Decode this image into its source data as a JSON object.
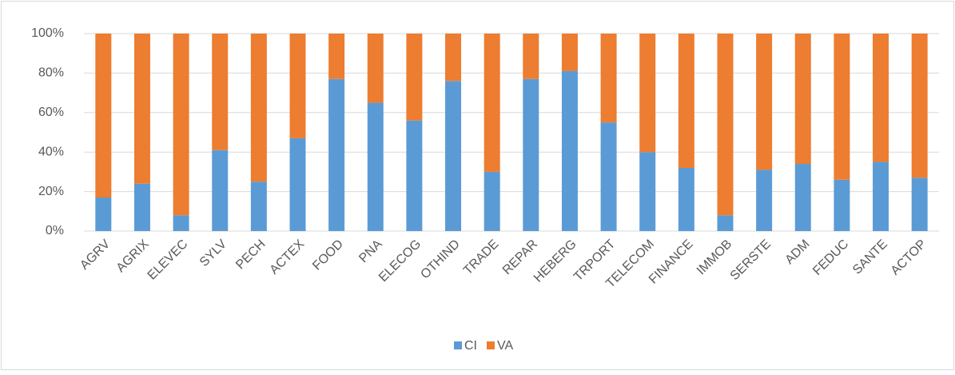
{
  "chart_data": {
    "type": "stacked_bar",
    "categories": [
      "AGRV",
      "AGRIX",
      "ELEVEC",
      "SYLV",
      "PECH",
      "ACTEX",
      "FOOD",
      "PNA",
      "ELECOG",
      "OTHIND",
      "TRADE",
      "REPAR",
      "HEBERG",
      "TRPORT",
      "TELECOM",
      "FINANCE",
      "IMMOB",
      "SERSTE",
      "ADM",
      "FEDUC",
      "SANTE",
      "ACTOP"
    ],
    "series": [
      {
        "name": "CI",
        "color": "#5b9bd5",
        "values": [
          17,
          24,
          8,
          41,
          25,
          47,
          77,
          65,
          56,
          76,
          30,
          77,
          81,
          55,
          40,
          32,
          8,
          31,
          34,
          26,
          35,
          27
        ]
      },
      {
        "name": "VA",
        "color": "#ed7d31",
        "values": [
          83,
          76,
          92,
          59,
          75,
          53,
          23,
          35,
          44,
          24,
          70,
          23,
          19,
          45,
          60,
          68,
          92,
          69,
          66,
          74,
          65,
          73
        ]
      }
    ],
    "ylim": [
      0,
      100
    ],
    "yticks": [
      {
        "value": 0,
        "label": "0%"
      },
      {
        "value": 20,
        "label": "20%"
      },
      {
        "value": 40,
        "label": "40%"
      },
      {
        "value": 60,
        "label": "60%"
      },
      {
        "value": 80,
        "label": "80%"
      },
      {
        "value": 100,
        "label": "100%"
      }
    ],
    "grid": true,
    "legend": "bottom"
  }
}
